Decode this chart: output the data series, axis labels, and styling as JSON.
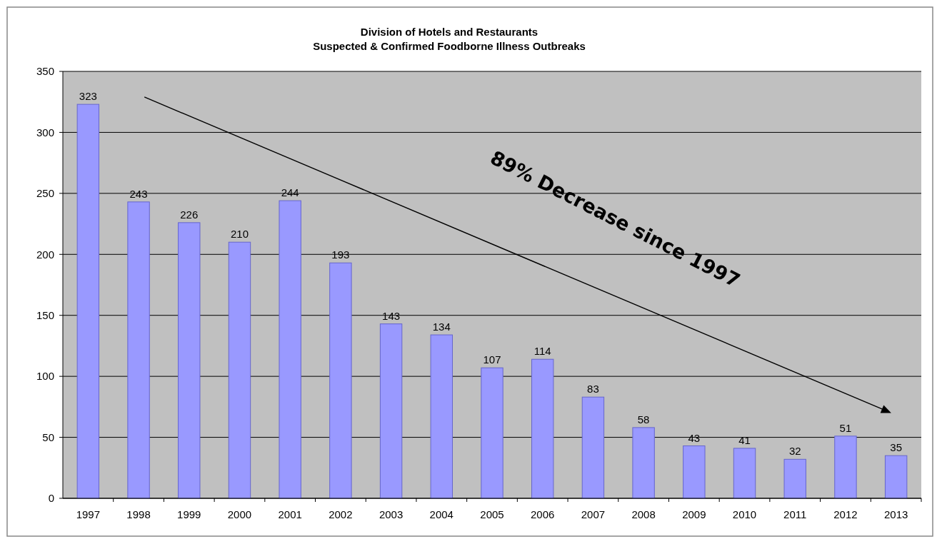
{
  "chart_data": {
    "type": "bar",
    "title": "Division of Hotels and Restaurants",
    "subtitle": "Suspected & Confirmed Foodborne Illness Outbreaks",
    "categories": [
      "1997",
      "1998",
      "1999",
      "2000",
      "2001",
      "2002",
      "2003",
      "2004",
      "2005",
      "2006",
      "2007",
      "2008",
      "2009",
      "2010",
      "2011",
      "2012",
      "2013"
    ],
    "values": [
      323,
      243,
      226,
      210,
      244,
      193,
      143,
      134,
      107,
      114,
      83,
      58,
      43,
      41,
      32,
      51,
      35
    ],
    "color": "#9999ff",
    "ylim": [
      0,
      350
    ],
    "yticks": [
      0,
      50,
      100,
      150,
      200,
      250,
      300,
      350
    ],
    "grid": "y",
    "data_labels": true,
    "annotations": [
      "89% Decrease since 1997"
    ]
  }
}
